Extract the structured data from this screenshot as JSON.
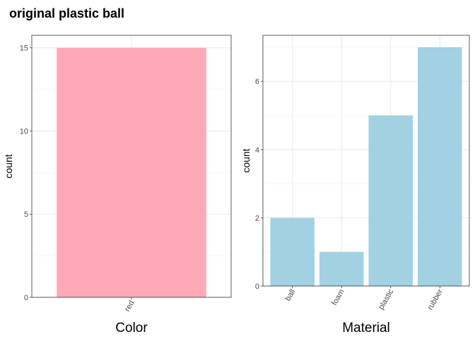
{
  "title": "original plastic ball",
  "chart_data": [
    {
      "type": "bar",
      "title": "",
      "xlabel": "Color",
      "ylabel": "count",
      "categories": [
        "red"
      ],
      "values": [
        15
      ],
      "ylim": [
        0,
        15.75
      ],
      "yticks": [
        0,
        5,
        10,
        15
      ],
      "bar_color": "#ffa8b8",
      "grid": true,
      "x_tick_rotation": -60
    },
    {
      "type": "bar",
      "title": "",
      "xlabel": "Material",
      "ylabel": "count",
      "categories": [
        "ball",
        "foam",
        "plastic",
        "rubber"
      ],
      "values": [
        2,
        1,
        5,
        7
      ],
      "ylim": [
        0,
        7.35
      ],
      "yticks": [
        0,
        2,
        4,
        6
      ],
      "bar_color": "#a1d1e2",
      "grid": true,
      "x_tick_rotation": -60
    }
  ]
}
